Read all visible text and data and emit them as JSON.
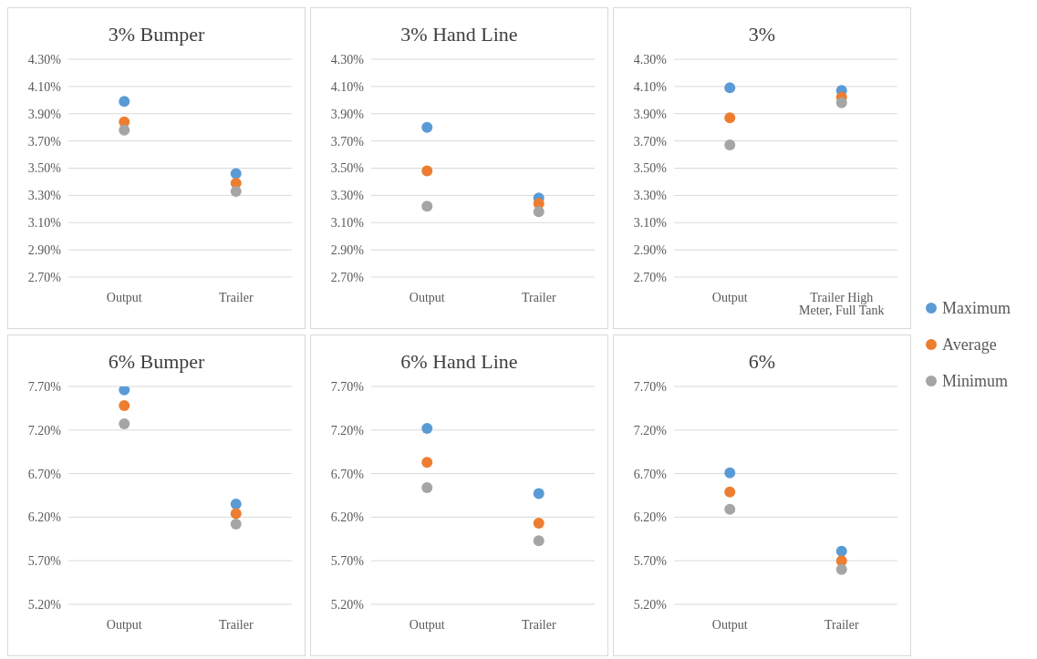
{
  "chart_data": [
    {
      "type": "scatter",
      "title": "3% Bumper",
      "categories": [
        "Output",
        "Trailer"
      ],
      "ylim": [
        2.7,
        4.3
      ],
      "yticks": [
        {
          "value": 2.7,
          "label": "2.70%"
        },
        {
          "value": 2.9,
          "label": "2.90%"
        },
        {
          "value": 3.1,
          "label": "3.10%"
        },
        {
          "value": 3.3,
          "label": "3.30%"
        },
        {
          "value": 3.5,
          "label": "3.50%"
        },
        {
          "value": 3.7,
          "label": "3.70%"
        },
        {
          "value": 3.9,
          "label": "3.90%"
        },
        {
          "value": 4.1,
          "label": "4.10%"
        },
        {
          "value": 4.3,
          "label": "4.30%"
        }
      ],
      "grid": "y",
      "marker": "circle",
      "legend": "right",
      "series": [
        {
          "name": "Maximum",
          "color": "#5b9bd5",
          "values": [
            3.99,
            3.46
          ]
        },
        {
          "name": "Average",
          "color": "#ed7d31",
          "values": [
            3.84,
            3.39
          ]
        },
        {
          "name": "Minimum",
          "color": "#a5a5a5",
          "values": [
            3.78,
            3.33
          ]
        }
      ]
    },
    {
      "type": "scatter",
      "title": "3% Hand Line",
      "categories": [
        "Output",
        "Trailer"
      ],
      "ylim": [
        2.7,
        4.3
      ],
      "yticks": [
        {
          "value": 2.7,
          "label": "2.70%"
        },
        {
          "value": 2.9,
          "label": "2.90%"
        },
        {
          "value": 3.1,
          "label": "3.10%"
        },
        {
          "value": 3.3,
          "label": "3.30%"
        },
        {
          "value": 3.5,
          "label": "3.50%"
        },
        {
          "value": 3.7,
          "label": "3.70%"
        },
        {
          "value": 3.9,
          "label": "3.90%"
        },
        {
          "value": 4.1,
          "label": "4.10%"
        },
        {
          "value": 4.3,
          "label": "4.30%"
        }
      ],
      "grid": "y",
      "marker": "circle",
      "series": [
        {
          "color": "#5b9bd5",
          "values": [
            3.8,
            3.28
          ]
        },
        {
          "color": "#ed7d31",
          "values": [
            3.48,
            3.24
          ]
        },
        {
          "color": "#a5a5a5",
          "values": [
            3.22,
            3.18
          ]
        }
      ]
    },
    {
      "type": "scatter",
      "title": "3%",
      "categories": [
        "Output",
        "Trailer High Meter, Full Tank"
      ],
      "ylim": [
        2.7,
        4.3
      ],
      "yticks": [
        {
          "value": 2.7,
          "label": "2.70%"
        },
        {
          "value": 2.9,
          "label": "2.90%"
        },
        {
          "value": 3.1,
          "label": "3.10%"
        },
        {
          "value": 3.3,
          "label": "3.30%"
        },
        {
          "value": 3.5,
          "label": "3.50%"
        },
        {
          "value": 3.7,
          "label": "3.70%"
        },
        {
          "value": 3.9,
          "label": "3.90%"
        },
        {
          "value": 4.1,
          "label": "4.10%"
        },
        {
          "value": 4.3,
          "label": "4.30%"
        }
      ],
      "grid": "y",
      "marker": "circle",
      "series": [
        {
          "color": "#5b9bd5",
          "values": [
            4.09,
            4.07
          ]
        },
        {
          "color": "#ed7d31",
          "values": [
            3.87,
            4.02
          ]
        },
        {
          "color": "#a5a5a5",
          "values": [
            3.67,
            3.98
          ]
        }
      ]
    },
    {
      "type": "scatter",
      "title": "6% Bumper",
      "categories": [
        "Output",
        "Trailer"
      ],
      "ylim": [
        5.2,
        7.7
      ],
      "yticks": [
        {
          "value": 5.2,
          "label": "5.20%"
        },
        {
          "value": 5.7,
          "label": "5.70%"
        },
        {
          "value": 6.2,
          "label": "6.20%"
        },
        {
          "value": 6.7,
          "label": "6.70%"
        },
        {
          "value": 7.2,
          "label": "7.20%"
        },
        {
          "value": 7.7,
          "label": "7.70%"
        }
      ],
      "grid": "y",
      "marker": "circle",
      "series": [
        {
          "color": "#5b9bd5",
          "values": [
            7.66,
            6.35
          ]
        },
        {
          "color": "#ed7d31",
          "values": [
            7.48,
            6.24
          ]
        },
        {
          "color": "#a5a5a5",
          "values": [
            7.27,
            6.12
          ]
        }
      ]
    },
    {
      "type": "scatter",
      "title": "6% Hand Line",
      "categories": [
        "Output",
        "Trailer"
      ],
      "ylim": [
        5.2,
        7.7
      ],
      "yticks": [
        {
          "value": 5.2,
          "label": "5.20%"
        },
        {
          "value": 5.7,
          "label": "5.70%"
        },
        {
          "value": 6.2,
          "label": "6.20%"
        },
        {
          "value": 6.7,
          "label": "6.70%"
        },
        {
          "value": 7.2,
          "label": "7.20%"
        },
        {
          "value": 7.7,
          "label": "7.70%"
        }
      ],
      "grid": "y",
      "marker": "circle",
      "series": [
        {
          "color": "#5b9bd5",
          "values": [
            7.22,
            6.47
          ]
        },
        {
          "color": "#ed7d31",
          "values": [
            6.83,
            6.13
          ]
        },
        {
          "color": "#a5a5a5",
          "values": [
            6.54,
            5.93
          ]
        }
      ]
    },
    {
      "type": "scatter",
      "title": "6%",
      "categories": [
        "Output",
        "Trailer"
      ],
      "ylim": [
        5.2,
        7.7
      ],
      "yticks": [
        {
          "value": 5.2,
          "label": "5.20%"
        },
        {
          "value": 5.7,
          "label": "5.70%"
        },
        {
          "value": 6.2,
          "label": "6.20%"
        },
        {
          "value": 6.7,
          "label": "6.70%"
        },
        {
          "value": 7.2,
          "label": "7.20%"
        },
        {
          "value": 7.7,
          "label": "7.70%"
        }
      ],
      "grid": "y",
      "marker": "circle",
      "series": [
        {
          "color": "#5b9bd5",
          "values": [
            6.71,
            5.81
          ]
        },
        {
          "color": "#ed7d31",
          "values": [
            6.49,
            5.7
          ]
        },
        {
          "color": "#a5a5a5",
          "values": [
            6.29,
            5.6
          ]
        }
      ]
    }
  ]
}
